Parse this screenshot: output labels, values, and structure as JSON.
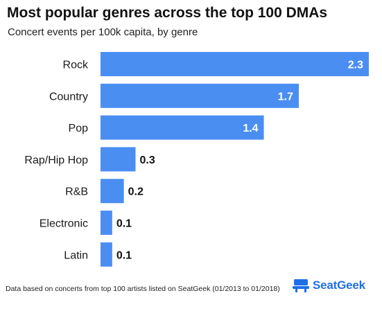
{
  "title": "Most popular genres across the top 100 DMAs",
  "subtitle": "Concert events per 100k capita, by genre",
  "footer": "Data based on concerts from top 100 artists listed on SeatGeek (01/2013 to 01/2018)",
  "brand": {
    "name": "SeatGeek",
    "icon": "seatgeek-chair-icon"
  },
  "colors": {
    "bar": "#4a8ef2",
    "brand": "#1f6fe6",
    "label_dark": "#111111",
    "label_light": "#ffffff"
  },
  "chart_data": {
    "type": "bar",
    "orientation": "horizontal",
    "categories": [
      "Rock",
      "Country",
      "Pop",
      "Rap/Hip Hop",
      "R&B",
      "Electronic",
      "Latin"
    ],
    "values": [
      2.3,
      1.7,
      1.4,
      0.3,
      0.2,
      0.1,
      0.1
    ],
    "value_labels": [
      "2.3",
      "1.7",
      "1.4",
      "0.3",
      "0.2",
      "0.1",
      "0.1"
    ],
    "xlim": [
      0,
      2.3
    ],
    "grid": false,
    "legend": "none"
  }
}
